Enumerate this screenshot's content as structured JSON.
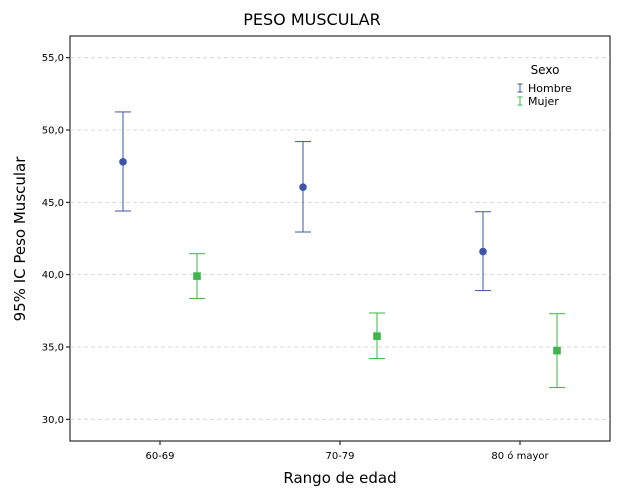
{
  "chart_data": {
    "type": "errorbar",
    "title": "PESO MUSCULAR",
    "xlabel": "Rango de edad",
    "ylabel": "95% IC Peso Muscular",
    "categories": [
      "60-69",
      "70-79",
      "80 ó mayor"
    ],
    "ylim": [
      28.5,
      56.5
    ],
    "yticks": [
      30.0,
      35.0,
      40.0,
      45.0,
      50.0,
      55.0
    ],
    "ytick_labels": [
      "30,0",
      "35,0",
      "40,0",
      "45,0",
      "50,0",
      "55,0"
    ],
    "grid": true,
    "legend": {
      "title": "Sexo",
      "position": "top-right"
    },
    "series": [
      {
        "name": "Hombre",
        "color": "#3d55a8",
        "marker": "circle",
        "mean": [
          47.8,
          46.05,
          41.6
        ],
        "lower": [
          44.4,
          42.95,
          38.9
        ],
        "upper": [
          51.25,
          49.2,
          44.35
        ]
      },
      {
        "name": "Mujer",
        "color": "#3cb54a",
        "marker": "square",
        "mean": [
          39.9,
          35.75,
          34.75
        ],
        "lower": [
          38.35,
          34.2,
          32.2
        ],
        "upper": [
          41.45,
          37.35,
          37.3
        ]
      }
    ]
  }
}
